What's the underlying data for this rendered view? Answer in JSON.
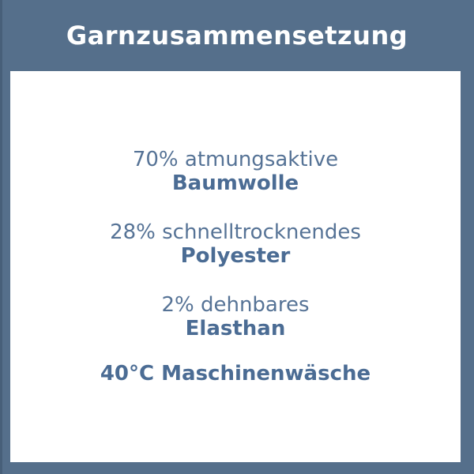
{
  "header": {
    "title": "Garnzusammensetzung"
  },
  "composition": {
    "items": [
      {
        "percentage_line": "70% atmungsaktive",
        "material": "Baumwolle"
      },
      {
        "percentage_line": "28% schnelltrocknendes",
        "material": "Polyester"
      },
      {
        "percentage_line": "2% dehnbares",
        "material": "Elasthan"
      }
    ],
    "care_note": "40°C Maschinenwäsche"
  },
  "colors": {
    "frame_background": "#556F8B",
    "panel_background": "#FFFFFF",
    "header_text": "#FFFFFF",
    "regular_text": "#567396",
    "bold_text": "#4B6C94"
  }
}
